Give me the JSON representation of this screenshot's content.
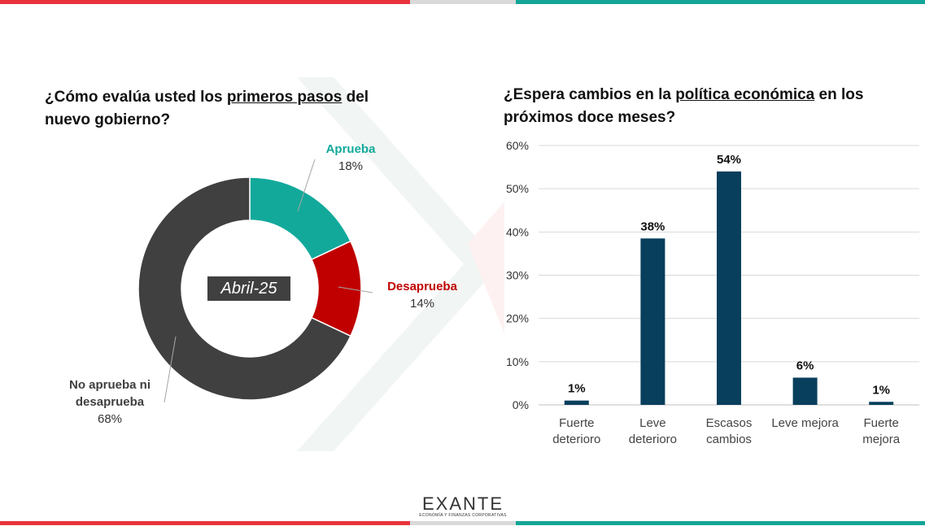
{
  "left_chart": {
    "title_pre": "¿Cómo evalúa usted los ",
    "title_underlined": "primeros pasos",
    "title_post": " del nuevo gobierno?",
    "badge": "Abril-25"
  },
  "right_chart": {
    "title_pre": "¿Espera cambios en la ",
    "title_underlined": "política económica",
    "title_post": " en los próximos doce meses?"
  },
  "chart_data": [
    {
      "type": "pie",
      "variant": "donut",
      "slices": [
        {
          "name": "Aprueba",
          "value": 18,
          "label": "18%",
          "color": "#12a99b"
        },
        {
          "name": "Desaprueba",
          "value": 14,
          "label": "14%",
          "color": "#c00000"
        },
        {
          "name": "No aprueba ni desaprueba",
          "value": 68,
          "label": "68%",
          "color": "#404040"
        }
      ]
    },
    {
      "type": "bar",
      "categories": [
        "Fuerte deterioro",
        "Leve deterioro",
        "Escasos cambios",
        "Leve mejora",
        "Fuerte mejora"
      ],
      "values": [
        1,
        38.5,
        54,
        6.3,
        0.7
      ],
      "data_labels": [
        "1%",
        "38%",
        "54%",
        "6%",
        "1%"
      ],
      "yticks": [
        "0%",
        "10%",
        "20%",
        "30%",
        "40%",
        "50%",
        "60%"
      ],
      "ylim": [
        0,
        60
      ],
      "grid": true,
      "bar_color": "#073f5c"
    }
  ],
  "logo": {
    "word": "EXANTE",
    "tagline": "ECONOMÍA Y FINANZAS CORPORATIVAS"
  }
}
